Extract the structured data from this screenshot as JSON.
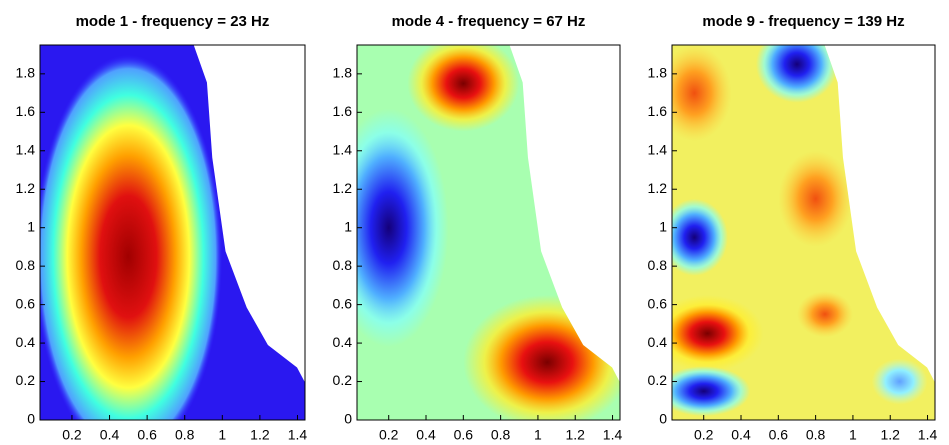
{
  "chart_data": [
    {
      "type": "field",
      "title": "mode 1 - frequency = 23 Hz",
      "xlim": [
        0.03,
        1.44
      ],
      "ylim": [
        0,
        1.95
      ],
      "xticks": [
        0.2,
        0.4,
        0.6,
        0.8,
        1,
        1.2,
        1.4
      ],
      "yticks": [
        0,
        0.2,
        0.4,
        0.6,
        0.8,
        1,
        1.2,
        1.4,
        1.6,
        1.8
      ],
      "grid": false
    },
    {
      "type": "field",
      "title": "mode 4 - frequency = 67 Hz",
      "xlim": [
        0.03,
        1.44
      ],
      "ylim": [
        0,
        1.95
      ],
      "xticks": [
        0.2,
        0.4,
        0.6,
        0.8,
        1,
        1.2,
        1.4
      ],
      "yticks": [
        0,
        0.2,
        0.4,
        0.6,
        0.8,
        1,
        1.2,
        1.4,
        1.6,
        1.8
      ],
      "grid": false
    },
    {
      "type": "field",
      "title": "mode 9 - frequency = 139 Hz",
      "xlim": [
        0.03,
        1.44
      ],
      "ylim": [
        0,
        1.95
      ],
      "xticks": [
        0.2,
        0.4,
        0.6,
        0.8,
        1,
        1.2,
        1.4
      ],
      "yticks": [
        0,
        0.2,
        0.4,
        0.6,
        0.8,
        1,
        1.2,
        1.4,
        1.6,
        1.8
      ],
      "grid": false
    }
  ]
}
